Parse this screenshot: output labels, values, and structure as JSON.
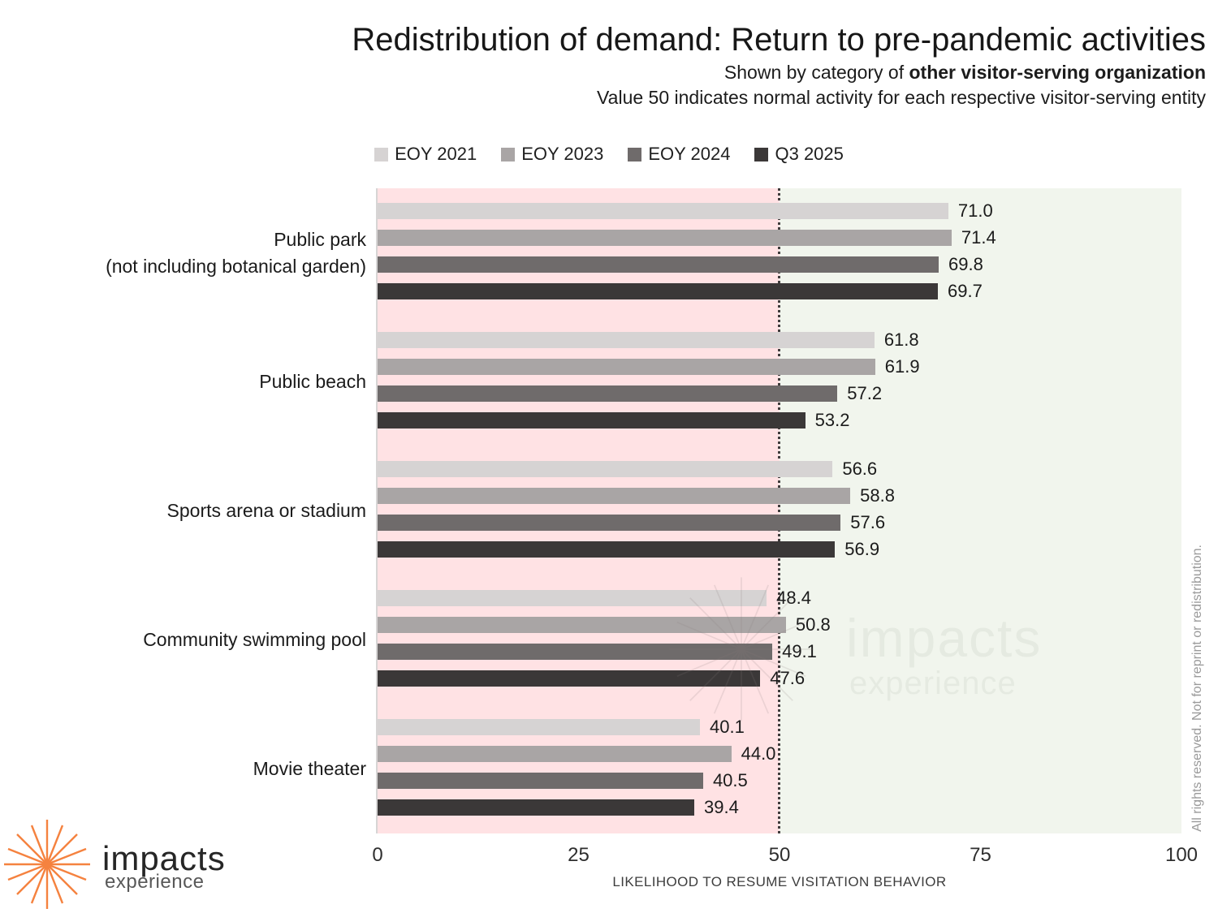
{
  "header": {
    "title": "Redistribution of demand: Return to pre-pandemic activities",
    "subtitle_prefix": "Shown by category of ",
    "subtitle_bold": "other visitor-serving organization",
    "subtitle2": "Value 50 indicates normal activity for each respective visitor-serving entity"
  },
  "chart_data": {
    "type": "bar",
    "orientation": "horizontal",
    "categories": [
      "Public park\n(not including botanical garden)",
      "Public beach",
      "Sports arena or stadium",
      "Community swimming pool",
      "Movie theater"
    ],
    "series": [
      {
        "name": "EOY 2021",
        "color": "#d6d3d3",
        "values": [
          71.0,
          61.8,
          56.6,
          48.4,
          40.1
        ]
      },
      {
        "name": "EOY 2023",
        "color": "#a9a5a5",
        "values": [
          71.4,
          61.9,
          58.8,
          50.8,
          44.0
        ]
      },
      {
        "name": "EOY 2024",
        "color": "#6f6b6b",
        "values": [
          69.8,
          57.2,
          57.6,
          49.1,
          40.5
        ]
      },
      {
        "name": "Q3 2025",
        "color": "#3b3838",
        "values": [
          69.7,
          53.2,
          56.9,
          47.6,
          39.4
        ]
      }
    ],
    "xlabel": "LIKELIHOOD TO RESUME VISITATION BEHAVIOR",
    "xlim": [
      0,
      100
    ],
    "xticks": [
      0,
      25,
      50,
      75,
      100
    ],
    "reference_line": 50,
    "grid": false,
    "legend_position": "top-center",
    "zone_colors": {
      "below_50": "#ffe2e4",
      "above_50": "#f1f5ed"
    }
  },
  "watermark": {
    "line1": "impacts",
    "line2": "experience"
  },
  "side_note": "All rights reserved. Not for reprint or redistribution.",
  "logo": {
    "name": "impacts",
    "tagline": "experience",
    "accent_color": "#f5823f"
  }
}
